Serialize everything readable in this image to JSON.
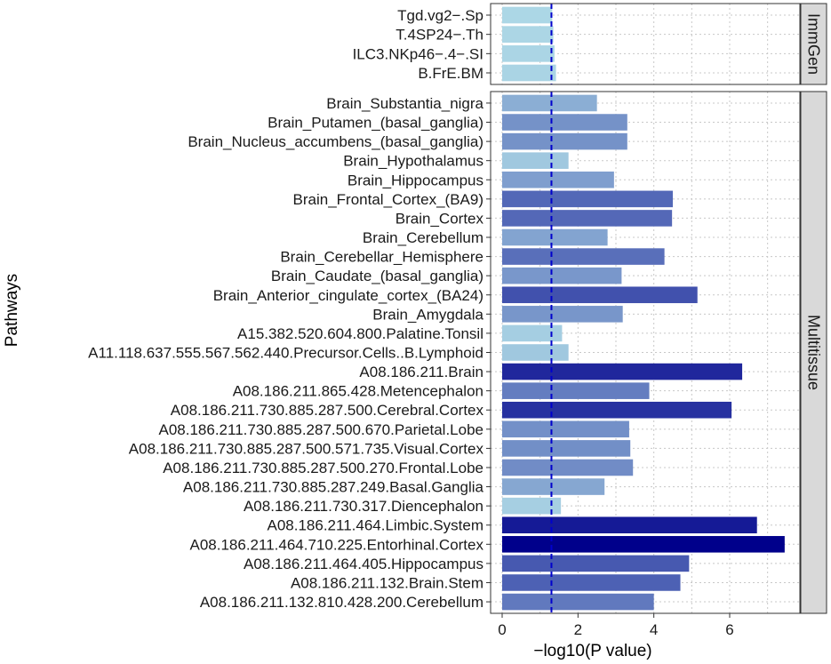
{
  "chart_data": {
    "type": "bar",
    "orientation": "horizontal",
    "xlabel": "−log10(P value)",
    "ylabel": "Pathways",
    "xlim": [
      0,
      7.5
    ],
    "xticks": [
      0,
      2,
      4,
      6
    ],
    "threshold": 1.3,
    "colors": {
      "threshold_line": "#0000cc",
      "strip_fill": "#d9d9d9",
      "grid": "#c8c8c8",
      "low": "#add8e6",
      "high": "#00008b"
    },
    "panels": [
      {
        "name": "ImmGen",
        "categories": [
          "Tgd.vg2−.Sp",
          "T.4SP24−.Th",
          "ILC3.NKp46−.4−.SI",
          "B.FrE.BM"
        ],
        "values": [
          1.32,
          1.35,
          1.38,
          1.42
        ]
      },
      {
        "name": "Multitissue",
        "categories": [
          "Brain_Substantia_nigra",
          "Brain_Putamen_(basal_ganglia)",
          "Brain_Nucleus_accumbens_(basal_ganglia)",
          "Brain_Hypothalamus",
          "Brain_Hippocampus",
          "Brain_Frontal_Cortex_(BA9)",
          "Brain_Cortex",
          "Brain_Cerebellum",
          "Brain_Cerebellar_Hemisphere",
          "Brain_Caudate_(basal_ganglia)",
          "Brain_Anterior_cingulate_cortex_(BA24)",
          "Brain_Amygdala",
          "A15.382.520.604.800.Palatine.Tonsil",
          "A11.118.637.555.567.562.440.Precursor.Cells..B.Lymphoid",
          "A08.186.211.Brain",
          "A08.186.211.865.428.Metencephalon",
          "A08.186.211.730.885.287.500.Cerebral.Cortex",
          "A08.186.211.730.885.287.500.670.Parietal.Lobe",
          "A08.186.211.730.885.287.500.571.735.Visual.Cortex",
          "A08.186.211.730.885.287.500.270.Frontal.Lobe",
          "A08.186.211.730.885.287.249.Basal.Ganglia",
          "A08.186.211.730.317.Diencephalon",
          "A08.186.211.464.Limbic.System",
          "A08.186.211.464.710.225.Entorhinal.Cortex",
          "A08.186.211.464.405.Hippocampus",
          "A08.186.211.132.Brain.Stem",
          "A08.186.211.132.810.428.200.Cerebellum"
        ],
        "values": [
          2.5,
          3.3,
          3.3,
          1.75,
          2.95,
          4.5,
          4.48,
          2.78,
          4.28,
          3.15,
          5.15,
          3.18,
          1.58,
          1.75,
          6.33,
          3.88,
          6.05,
          3.35,
          3.38,
          3.45,
          2.7,
          1.55,
          6.72,
          7.45,
          4.93,
          4.7,
          4.0
        ]
      }
    ]
  }
}
